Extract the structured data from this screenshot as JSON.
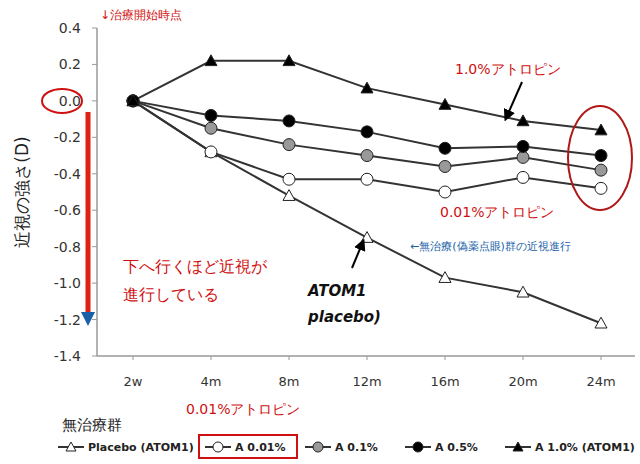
{
  "chart_data": {
    "type": "line",
    "ylabel": "近視の強さ(D)",
    "categories": [
      "2w",
      "4m",
      "8m",
      "12m",
      "16m",
      "20m",
      "24m"
    ],
    "series": [
      {
        "name": "Placebo (ATOM1)",
        "color": "#ffffff",
        "marker": "triangle",
        "line_style": "solid",
        "values": [
          0,
          -0.28,
          -0.52,
          -0.75,
          -0.97,
          -1.05,
          -1.22
        ]
      },
      {
        "name": "A 0.01%",
        "color": "#ffffff",
        "marker": "circle",
        "line_style": "solid",
        "values": [
          0,
          -0.28,
          -0.43,
          -0.43,
          -0.5,
          -0.42,
          -0.48
        ]
      },
      {
        "name": "A 0.1%",
        "color": "#999999",
        "marker": "circle",
        "line_style": "solid",
        "values": [
          0,
          -0.15,
          -0.24,
          -0.3,
          -0.36,
          -0.31,
          -0.38
        ]
      },
      {
        "name": "A 0.5%",
        "color": "#000000",
        "marker": "circle",
        "line_style": "solid",
        "values": [
          0,
          -0.08,
          -0.11,
          -0.17,
          -0.26,
          -0.25,
          -0.3
        ]
      },
      {
        "name": "A 1.0% (ATOM1)",
        "color": "#000000",
        "marker": "triangle",
        "line_style": "solid",
        "values": [
          0,
          0.22,
          0.22,
          0.07,
          -0.02,
          -0.11,
          -0.16
        ]
      }
    ],
    "ylim": [
      -1.4,
      0.4
    ],
    "yticks": [
      0.4,
      0.2,
      {
        "value": 0,
        "label": "0.0"
      },
      -0.2,
      -0.4,
      -0.6,
      -0.8,
      {
        "value": -1,
        "label": "-1.0"
      },
      -1.2,
      -1.4
    ],
    "grid": false,
    "legend": "bottom",
    "annotations": [
      "↓治療開始時点",
      "1.0%アトロピン",
      "0.01%アトロピン",
      "下へ行くほど近視が",
      "進行している",
      "ATOM1",
      "placebo)",
      "←無治療(偽薬点眼)群の近視進行",
      "無治療群",
      "0.01%アトロピン"
    ]
  }
}
